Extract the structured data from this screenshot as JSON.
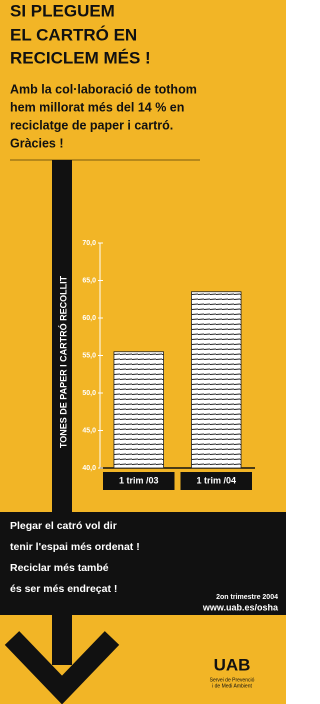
{
  "heading": [
    "SI PLEGUEM",
    "EL CARTRÓ EN",
    "RECICLEM MÉS !"
  ],
  "message": [
    "Amb la col·laboració de tothom",
    "hem millorat més del 14 % en",
    "reciclatge de paper i cartró.",
    "Gràcies !"
  ],
  "chart_data": {
    "type": "bar",
    "y_label": "TONES DE PAPER I CARTRÓ RECOLLIT",
    "categories": [
      "1 trim /03",
      "1 trim /04"
    ],
    "values": [
      55.5,
      63.5
    ],
    "color": "#ffffff",
    "ylim": [
      40,
      70
    ],
    "yticks": [
      {
        "value": 40,
        "label": "40,0"
      },
      {
        "value": 45,
        "label": "45,0"
      },
      {
        "value": 50,
        "label": "50,0"
      },
      {
        "value": 55,
        "label": "55,0"
      },
      {
        "value": 60,
        "label": "60,0"
      },
      {
        "value": 65,
        "label": "65,0"
      },
      {
        "value": 70,
        "label": "70,0"
      }
    ]
  },
  "band": [
    "Plegar el catró vol dir",
    "tenir l'espai més ordenat !",
    "Reciclar més també",
    "és ser més endreçat !"
  ],
  "date": "2on trimestre 2004",
  "url": "www.uab.es/osha",
  "logo": "UAB",
  "service": [
    "Servei de Prevenció",
    "i de Medi Ambient"
  ]
}
